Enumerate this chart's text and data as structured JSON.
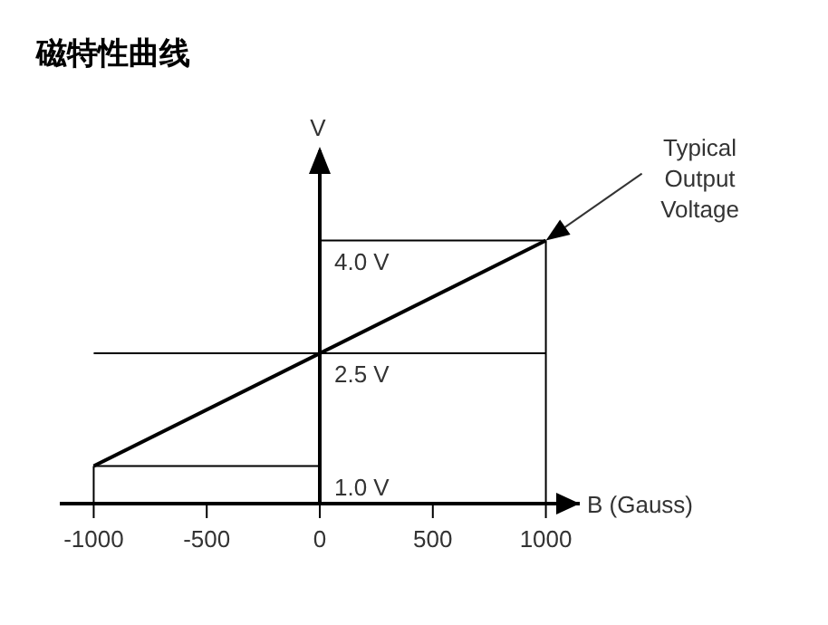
{
  "chart_data": {
    "type": "line",
    "title": "磁特性曲线",
    "xlabel": "B (Gauss)",
    "ylabel": "V",
    "x": [
      -1000,
      1000
    ],
    "series": [
      {
        "color": "#000000",
        "values": [
          1.0,
          4.0
        ]
      }
    ],
    "xlim": [
      -1150,
      1150
    ],
    "xticks": [
      -1000,
      -500,
      0,
      500,
      1000
    ],
    "ylim": [
      0.5,
      5.2
    ],
    "yticks": [
      {
        "value": 1.0,
        "label": "1.0 V"
      },
      {
        "value": 2.5,
        "label": "2.5 V"
      },
      {
        "value": 4.0,
        "label": "4.0 V"
      }
    ],
    "ref_lines": [
      {
        "axis": "y",
        "value": 4.0,
        "color": "#000000"
      },
      {
        "axis": "y",
        "value": 2.5,
        "color": "#000000"
      },
      {
        "axis": "y",
        "value": 1.0,
        "color": "#000000"
      },
      {
        "axis": "x",
        "value": 1000,
        "color": "#000000"
      },
      {
        "axis": "x",
        "value": -1000,
        "color": "#000000"
      }
    ],
    "annotations": [
      {
        "text": "Typical\nOutput\nVoltage",
        "x": 1000,
        "y": 4.0
      }
    ]
  }
}
